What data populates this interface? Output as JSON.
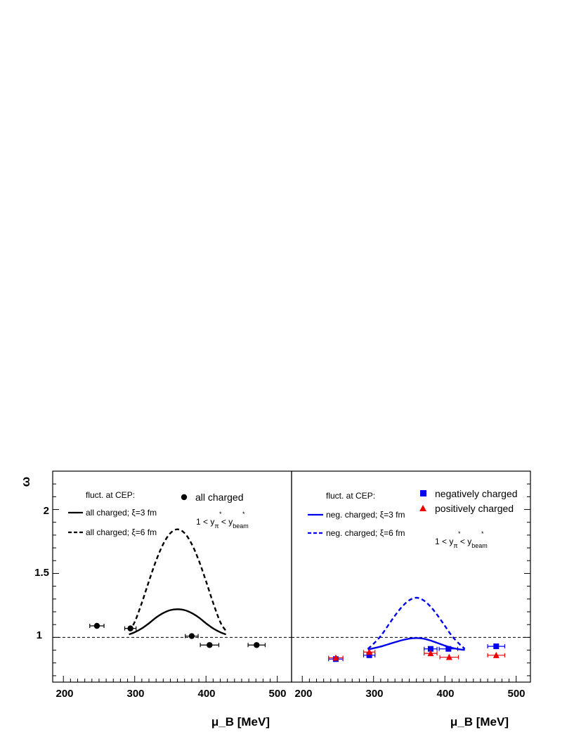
{
  "chart_data": [
    {
      "type": "scatter",
      "panel": "left",
      "xlabel": "μ_B [MeV]",
      "ylabel": "ω",
      "xlim": [
        185,
        520
      ],
      "ylim": [
        0.65,
        2.3
      ],
      "x_ticks": [
        "200",
        "300",
        "400",
        "500"
      ],
      "y_ticks": [
        "1",
        "1.5",
        "2"
      ],
      "reference_line": 1.0,
      "legend": {
        "header": "fluct. at CEP:",
        "entries": [
          "all charged; ξ=3 fm",
          "all charged; ξ=6 fm"
        ],
        "marker_entries": [
          "all charged"
        ],
        "rapidity_cut": {
          "pre": "1 < y",
          "sub1": "π",
          "mid": " < y",
          "sub2": "beam"
        }
      },
      "series": [
        {
          "name": "all charged",
          "kind": "points",
          "color": "#000000",
          "points": [
            {
              "x": 247,
              "y": 1.09,
              "xerr": 10
            },
            {
              "x": 294,
              "y": 1.07,
              "xerr": 8
            },
            {
              "x": 380,
              "y": 1.01,
              "xerr": 9
            },
            {
              "x": 405,
              "y": 0.94,
              "xerr": 13
            },
            {
              "x": 471,
              "y": 0.94,
              "xerr": 12
            }
          ]
        },
        {
          "name": "all charged; ξ=3 fm",
          "kind": "curve",
          "style": "solid",
          "color": "#000000",
          "points": [
            [
              292,
              1.023
            ],
            [
              300,
              1.04
            ],
            [
              310,
              1.07
            ],
            [
              320,
              1.11
            ],
            [
              330,
              1.155
            ],
            [
              340,
              1.19
            ],
            [
              350,
              1.213
            ],
            [
              360,
              1.22
            ],
            [
              370,
              1.213
            ],
            [
              380,
              1.19
            ],
            [
              390,
              1.155
            ],
            [
              400,
              1.11
            ],
            [
              410,
              1.07
            ],
            [
              420,
              1.04
            ],
            [
              428,
              1.023
            ]
          ]
        },
        {
          "name": "all charged; ξ=6 fm",
          "kind": "curve",
          "style": "dashed",
          "color": "#000000",
          "points": [
            [
              292,
              1.05
            ],
            [
              300,
              1.12
            ],
            [
              310,
              1.27
            ],
            [
              320,
              1.44
            ],
            [
              330,
              1.6
            ],
            [
              340,
              1.73
            ],
            [
              350,
              1.815
            ],
            [
              360,
              1.845
            ],
            [
              370,
              1.815
            ],
            [
              380,
              1.73
            ],
            [
              390,
              1.6
            ],
            [
              400,
              1.44
            ],
            [
              410,
              1.27
            ],
            [
              420,
              1.12
            ],
            [
              428,
              1.05
            ]
          ]
        }
      ]
    },
    {
      "type": "scatter",
      "panel": "right",
      "xlabel": "μ_B [MeV]",
      "xlim": [
        185,
        520
      ],
      "ylim": [
        0.65,
        2.3
      ],
      "x_ticks": [
        "200",
        "300",
        "400",
        "500"
      ],
      "reference_line": 1.0,
      "legend": {
        "header": "fluct. at CEP:",
        "entries": [
          "neg. charged; ξ=3 fm",
          "neg. charged; ξ=6 fm"
        ],
        "marker_entries": [
          "negatively charged",
          "positively charged"
        ],
        "rapidity_cut": {
          "pre": "1 < y",
          "sub1": "π",
          "mid": " < y",
          "sub2": "beam"
        }
      },
      "series": [
        {
          "name": "negatively charged",
          "kind": "points",
          "marker": "square",
          "color": "#0000ee",
          "points": [
            {
              "x": 247,
              "y": 0.83,
              "xerr": 10
            },
            {
              "x": 294,
              "y": 0.86,
              "xerr": 8
            },
            {
              "x": 380,
              "y": 0.91,
              "xerr": 9
            },
            {
              "x": 405,
              "y": 0.91,
              "xerr": 13
            },
            {
              "x": 472,
              "y": 0.93,
              "xerr": 12
            }
          ]
        },
        {
          "name": "positively charged",
          "kind": "points",
          "marker": "triangle",
          "color": "#ee0000",
          "points": [
            {
              "x": 247,
              "y": 0.84,
              "xerr": 10
            },
            {
              "x": 294,
              "y": 0.885,
              "xerr": 8
            },
            {
              "x": 380,
              "y": 0.875,
              "xerr": 9
            },
            {
              "x": 406,
              "y": 0.845,
              "xerr": 13
            },
            {
              "x": 472,
              "y": 0.86,
              "xerr": 12
            }
          ]
        },
        {
          "name": "neg. charged; ξ=3 fm",
          "kind": "curve",
          "style": "solid",
          "color": "#0000ee",
          "points": [
            [
              292,
              0.905
            ],
            [
              300,
              0.915
            ],
            [
              310,
              0.928
            ],
            [
              320,
              0.945
            ],
            [
              330,
              0.962
            ],
            [
              340,
              0.978
            ],
            [
              350,
              0.99
            ],
            [
              360,
              0.995
            ],
            [
              370,
              0.99
            ],
            [
              380,
              0.975
            ],
            [
              390,
              0.955
            ],
            [
              400,
              0.935
            ],
            [
              410,
              0.918
            ],
            [
              420,
              0.907
            ],
            [
              428,
              0.902
            ]
          ]
        },
        {
          "name": "neg. charged; ξ=6 fm",
          "kind": "curve",
          "style": "dashed",
          "color": "#0000ee",
          "points": [
            [
              292,
              0.91
            ],
            [
              300,
              0.95
            ],
            [
              310,
              1.01
            ],
            [
              320,
              1.09
            ],
            [
              330,
              1.17
            ],
            [
              340,
              1.24
            ],
            [
              350,
              1.29
            ],
            [
              360,
              1.31
            ],
            [
              370,
              1.29
            ],
            [
              380,
              1.24
            ],
            [
              390,
              1.17
            ],
            [
              400,
              1.09
            ],
            [
              410,
              1.01
            ],
            [
              420,
              0.95
            ],
            [
              428,
              0.91
            ]
          ]
        }
      ]
    }
  ]
}
